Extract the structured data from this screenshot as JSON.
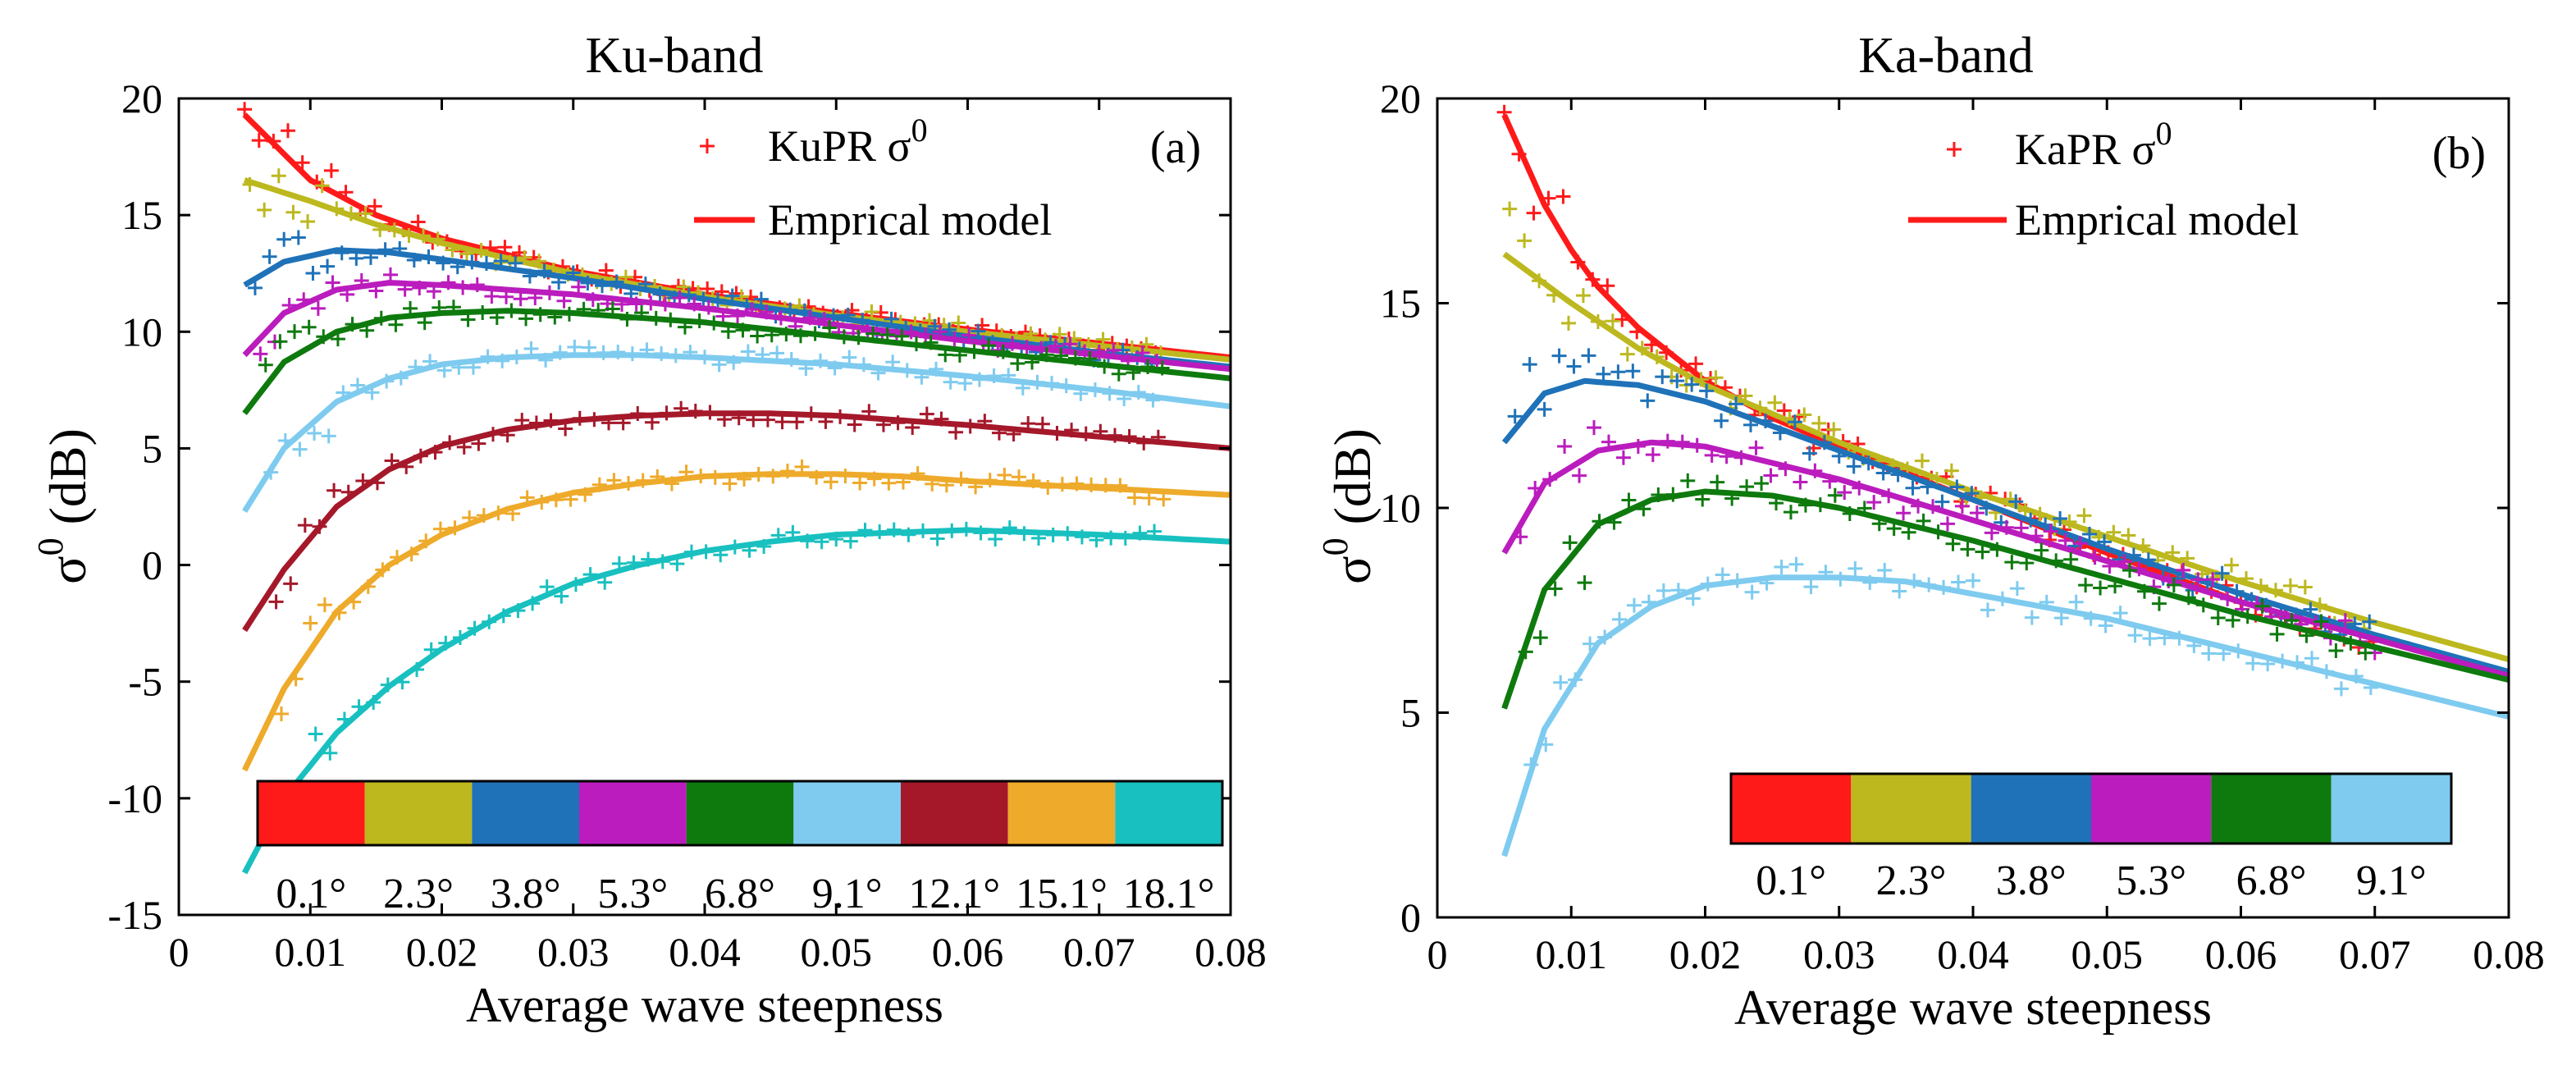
{
  "colors": {
    "red": "#ff1a1a",
    "olive": "#bcb81e",
    "blue": "#1f72b8",
    "magenta": "#bb1cbd",
    "green": "#0e7a0e",
    "lightblue": "#7ecbef",
    "darkred": "#a5182a",
    "orange": "#eeaa2a",
    "cyan": "#19c0c0"
  },
  "chart_data": [
    {
      "type": "line",
      "title": "Ku-band",
      "panel_label": "(a)",
      "xlabel": "Average wave steepness",
      "ylabel_main": "σ",
      "ylabel_sup": "0",
      "ylabel_unit": " (dB)",
      "xlim": [
        0,
        0.08
      ],
      "ylim": [
        -15,
        20
      ],
      "xticks": [
        0,
        0.01,
        0.02,
        0.03,
        0.04,
        0.05,
        0.06,
        0.07,
        0.08
      ],
      "xtick_labels": [
        "0",
        "0.01",
        "0.02",
        "0.03",
        "0.04",
        "0.05",
        "0.06",
        "0.07",
        "0.08"
      ],
      "yticks": [
        -15,
        -10,
        -5,
        0,
        5,
        10,
        15,
        20
      ],
      "ytick_labels": [
        "-15",
        "-10",
        "-5",
        "0",
        "5",
        "10",
        "15",
        "20"
      ],
      "legend": {
        "scatter_label_main": "KuPR σ",
        "scatter_label_sup": "0",
        "line_label": "Emprical model",
        "position": "top-right"
      },
      "colorbar": {
        "labels": [
          "0.1°",
          "2.3°",
          "3.8°",
          "5.3°",
          "6.8°",
          "9.1°",
          "12.1°",
          "15.1°",
          "18.1°"
        ],
        "colors": [
          "#ff1a1a",
          "#bcb81e",
          "#1f72b8",
          "#bb1cbd",
          "#0e7a0e",
          "#7ecbef",
          "#a5182a",
          "#eeaa2a",
          "#19c0c0"
        ]
      },
      "series": [
        {
          "name": "0.1°",
          "color": "#ff1a1a",
          "x": [
            0.005,
            0.01,
            0.015,
            0.02,
            0.03,
            0.04,
            0.05,
            0.06,
            0.07,
            0.08
          ],
          "y": [
            19.3,
            16.5,
            15.0,
            14.0,
            12.6,
            11.6,
            10.8,
            10.1,
            9.5,
            8.9
          ]
        },
        {
          "name": "2.3°",
          "color": "#bcb81e",
          "x": [
            0.005,
            0.01,
            0.015,
            0.02,
            0.03,
            0.04,
            0.05,
            0.06,
            0.07,
            0.08
          ],
          "y": [
            16.5,
            15.6,
            14.6,
            13.8,
            12.5,
            11.5,
            10.7,
            10.0,
            9.4,
            8.8
          ]
        },
        {
          "name": "3.8°",
          "color": "#1f72b8",
          "x": [
            0.005,
            0.008,
            0.012,
            0.016,
            0.02,
            0.03,
            0.04,
            0.05,
            0.06,
            0.07,
            0.08
          ],
          "y": [
            12.0,
            13.0,
            13.5,
            13.4,
            13.1,
            12.3,
            11.4,
            10.6,
            9.8,
            9.1,
            8.5
          ]
        },
        {
          "name": "5.3°",
          "color": "#bb1cbd",
          "x": [
            0.005,
            0.008,
            0.012,
            0.016,
            0.02,
            0.03,
            0.04,
            0.05,
            0.06,
            0.07,
            0.08
          ],
          "y": [
            9.0,
            10.8,
            11.8,
            12.1,
            12.0,
            11.6,
            11.0,
            10.3,
            9.6,
            9.0,
            8.4
          ]
        },
        {
          "name": "6.8°",
          "color": "#0e7a0e",
          "x": [
            0.005,
            0.008,
            0.012,
            0.016,
            0.02,
            0.025,
            0.03,
            0.04,
            0.05,
            0.06,
            0.07,
            0.08
          ],
          "y": [
            6.5,
            8.7,
            10.0,
            10.6,
            10.8,
            10.9,
            10.8,
            10.4,
            9.8,
            9.2,
            8.6,
            8.0
          ]
        },
        {
          "name": "9.1°",
          "color": "#7ecbef",
          "x": [
            0.005,
            0.008,
            0.012,
            0.016,
            0.02,
            0.025,
            0.03,
            0.035,
            0.04,
            0.05,
            0.06,
            0.07,
            0.08
          ],
          "y": [
            2.3,
            5.0,
            7.0,
            8.0,
            8.6,
            8.9,
            9.0,
            9.0,
            8.9,
            8.6,
            8.1,
            7.5,
            6.8
          ]
        },
        {
          "name": "12.1°",
          "color": "#a5182a",
          "x": [
            0.005,
            0.008,
            0.012,
            0.016,
            0.02,
            0.025,
            0.03,
            0.035,
            0.04,
            0.045,
            0.05,
            0.06,
            0.07,
            0.08
          ],
          "y": [
            -2.8,
            -0.2,
            2.5,
            4.1,
            5.1,
            5.8,
            6.2,
            6.4,
            6.5,
            6.5,
            6.4,
            6.0,
            5.5,
            5.0
          ]
        },
        {
          "name": "15.1°",
          "color": "#eeaa2a",
          "x": [
            0.005,
            0.008,
            0.012,
            0.016,
            0.02,
            0.025,
            0.03,
            0.035,
            0.04,
            0.045,
            0.05,
            0.055,
            0.06,
            0.07,
            0.08
          ],
          "y": [
            -8.8,
            -5.3,
            -2.0,
            0.0,
            1.3,
            2.4,
            3.1,
            3.5,
            3.8,
            3.9,
            3.9,
            3.8,
            3.6,
            3.3,
            3.0
          ]
        },
        {
          "name": "18.1°",
          "color": "#19c0c0",
          "x": [
            0.005,
            0.008,
            0.012,
            0.016,
            0.02,
            0.025,
            0.03,
            0.035,
            0.04,
            0.045,
            0.05,
            0.055,
            0.06,
            0.065,
            0.07,
            0.08
          ],
          "y": [
            -13.2,
            -10.0,
            -7.2,
            -5.2,
            -3.6,
            -2.0,
            -0.8,
            0.0,
            0.6,
            1.0,
            1.3,
            1.4,
            1.5,
            1.4,
            1.3,
            1.0
          ]
        }
      ]
    },
    {
      "type": "line",
      "title": "Ka-band",
      "panel_label": "(b)",
      "xlabel": "Average wave steepness",
      "ylabel_main": "σ",
      "ylabel_sup": "0",
      "ylabel_unit": " (dB)",
      "xlim": [
        0,
        0.08
      ],
      "ylim": [
        0,
        20
      ],
      "xticks": [
        0,
        0.01,
        0.02,
        0.03,
        0.04,
        0.05,
        0.06,
        0.07,
        0.08
      ],
      "xtick_labels": [
        "0",
        "0.01",
        "0.02",
        "0.03",
        "0.04",
        "0.05",
        "0.06",
        "0.07",
        "0.08"
      ],
      "yticks": [
        0,
        5,
        10,
        15,
        20
      ],
      "ytick_labels": [
        "0",
        "5",
        "10",
        "15",
        "20"
      ],
      "legend": {
        "scatter_label_main": "KaPR σ",
        "scatter_label_sup": "0",
        "line_label": "Emprical model",
        "position": "top-right"
      },
      "colorbar": {
        "labels": [
          "0.1°",
          "2.3°",
          "3.8°",
          "5.3°",
          "6.8°",
          "9.1°"
        ],
        "colors": [
          "#ff1a1a",
          "#bcb81e",
          "#1f72b8",
          "#bb1cbd",
          "#0e7a0e",
          "#7ecbef"
        ]
      },
      "series": [
        {
          "name": "0.1°",
          "color": "#ff1a1a",
          "x": [
            0.005,
            0.008,
            0.01,
            0.012,
            0.015,
            0.02,
            0.025,
            0.03,
            0.04,
            0.05,
            0.06,
            0.07,
            0.08
          ],
          "y": [
            19.6,
            17.4,
            16.3,
            15.4,
            14.4,
            13.1,
            12.2,
            11.5,
            10.2,
            8.9,
            7.7,
            6.8,
            5.9
          ]
        },
        {
          "name": "2.3°",
          "color": "#bcb81e",
          "x": [
            0.005,
            0.01,
            0.015,
            0.02,
            0.03,
            0.04,
            0.05,
            0.06,
            0.07,
            0.08
          ],
          "y": [
            16.2,
            15.0,
            13.9,
            13.0,
            11.6,
            10.4,
            9.3,
            8.2,
            7.2,
            6.3
          ]
        },
        {
          "name": "3.8°",
          "color": "#1f72b8",
          "x": [
            0.005,
            0.008,
            0.011,
            0.015,
            0.02,
            0.03,
            0.04,
            0.05,
            0.06,
            0.07,
            0.08
          ],
          "y": [
            11.6,
            12.8,
            13.1,
            13.0,
            12.6,
            11.4,
            10.2,
            9.0,
            7.9,
            6.9,
            6.0
          ]
        },
        {
          "name": "5.3°",
          "color": "#bb1cbd",
          "x": [
            0.005,
            0.008,
            0.012,
            0.016,
            0.02,
            0.03,
            0.04,
            0.05,
            0.06,
            0.07,
            0.08
          ],
          "y": [
            8.9,
            10.6,
            11.4,
            11.6,
            11.5,
            10.7,
            9.7,
            8.7,
            7.7,
            6.8,
            5.9
          ]
        },
        {
          "name": "6.8°",
          "color": "#0e7a0e",
          "x": [
            0.005,
            0.008,
            0.012,
            0.016,
            0.02,
            0.025,
            0.03,
            0.04,
            0.05,
            0.06,
            0.07,
            0.08
          ],
          "y": [
            5.1,
            8.0,
            9.6,
            10.2,
            10.4,
            10.3,
            10.0,
            9.2,
            8.3,
            7.4,
            6.6,
            5.8
          ]
        },
        {
          "name": "9.1°",
          "color": "#7ecbef",
          "x": [
            0.005,
            0.008,
            0.012,
            0.016,
            0.02,
            0.025,
            0.03,
            0.035,
            0.04,
            0.05,
            0.06,
            0.07,
            0.08
          ],
          "y": [
            1.5,
            4.6,
            6.7,
            7.6,
            8.1,
            8.3,
            8.3,
            8.2,
            7.9,
            7.3,
            6.5,
            5.7,
            4.9
          ]
        }
      ]
    }
  ]
}
